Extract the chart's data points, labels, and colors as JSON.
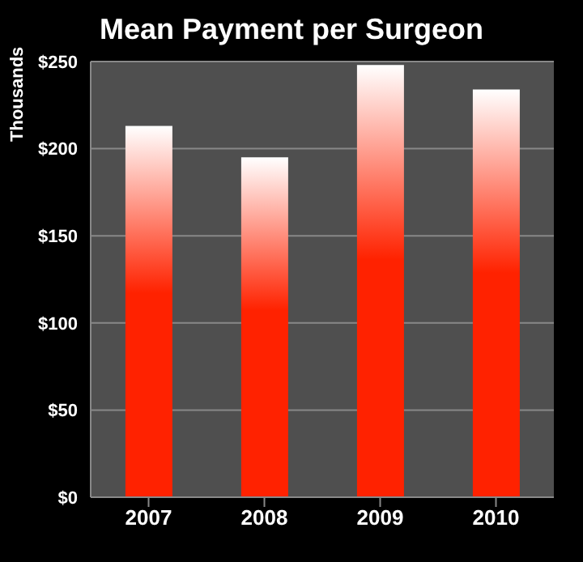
{
  "chart_data": {
    "type": "bar",
    "title": "Mean Payment per Surgeon",
    "ylabel": "Thousands",
    "categories": [
      "2007",
      "2008",
      "2009",
      "2010"
    ],
    "values": [
      213,
      195,
      248,
      234
    ],
    "color": "#ff2200",
    "ylim": [
      0,
      250
    ],
    "yticks": [
      {
        "value": 0,
        "label": "$0"
      },
      {
        "value": 50,
        "label": "$50"
      },
      {
        "value": 100,
        "label": "$100"
      },
      {
        "value": 150,
        "label": "$150"
      },
      {
        "value": 200,
        "label": "$200"
      },
      {
        "value": 250,
        "label": "$250"
      }
    ],
    "grid": "y"
  }
}
